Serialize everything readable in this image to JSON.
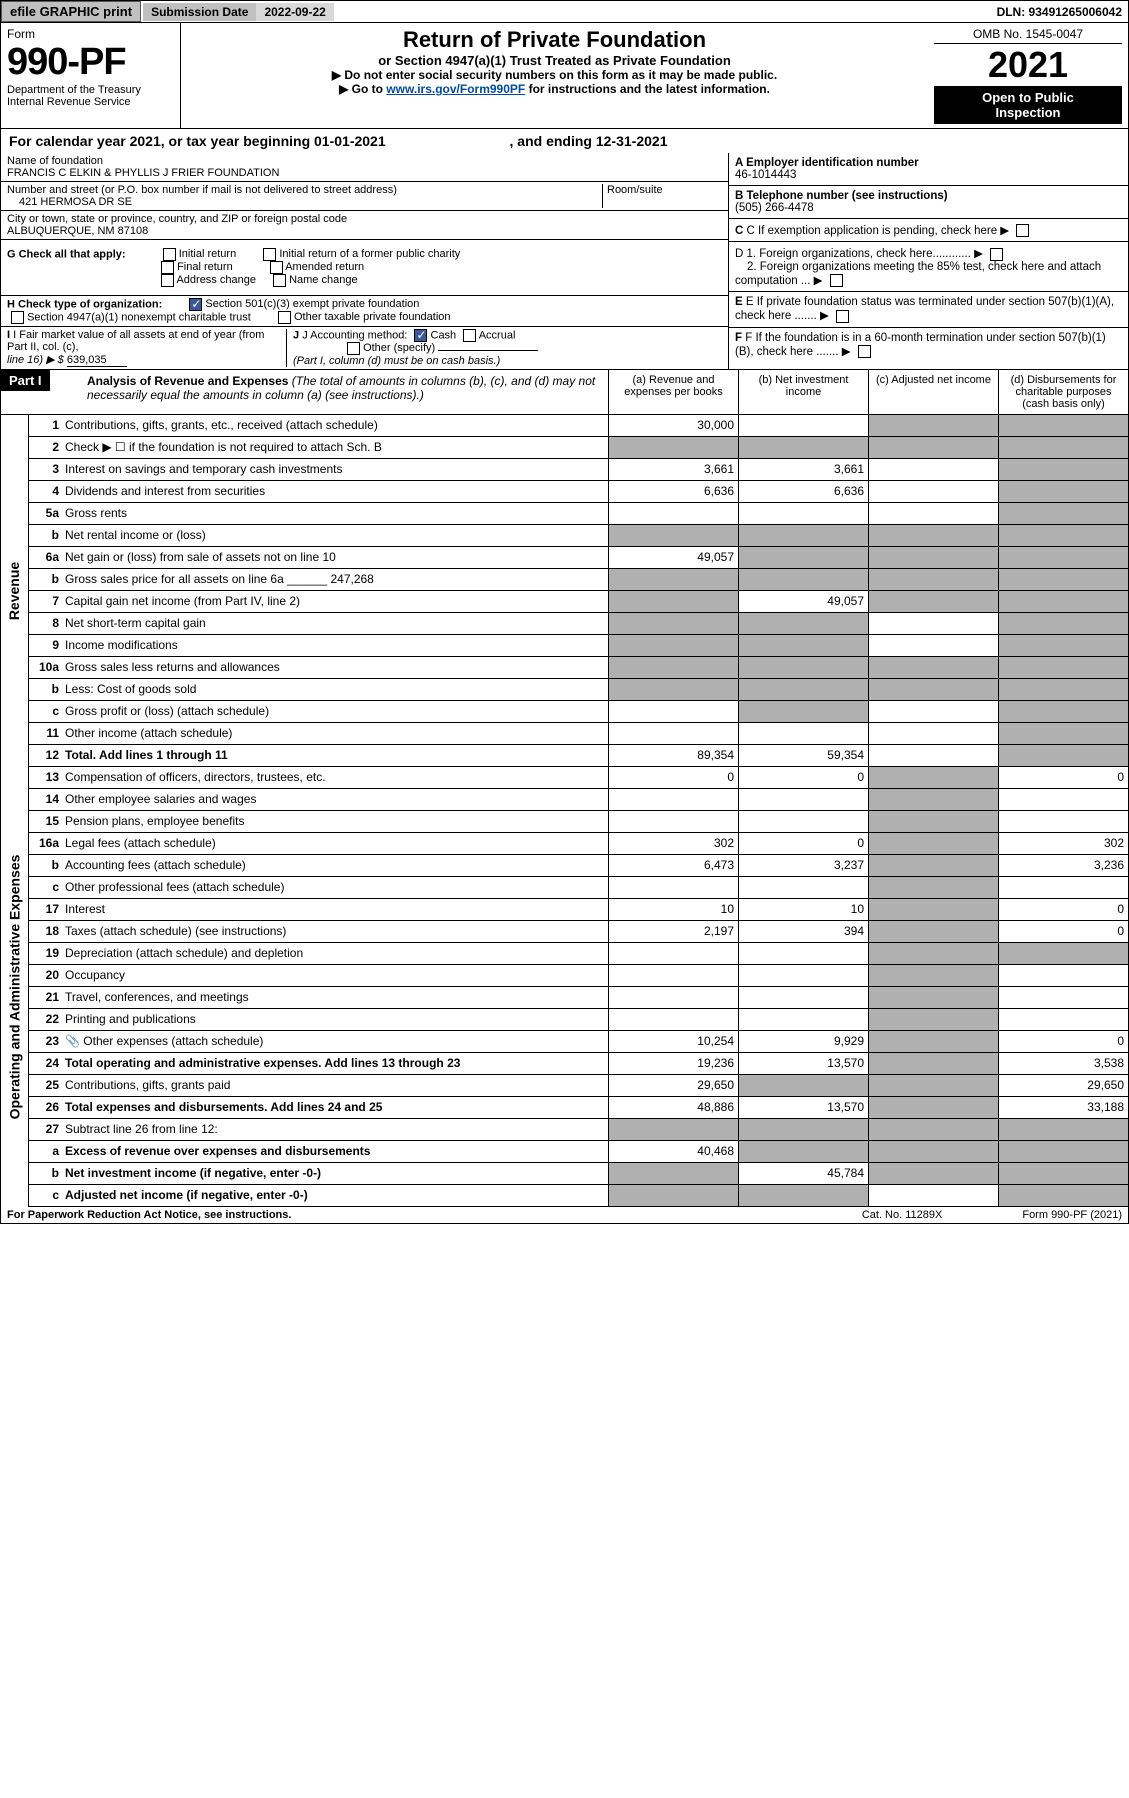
{
  "topbar": {
    "efile": "efile GRAPHIC print",
    "sub_label": "Submission Date",
    "sub_value": "2022-09-22",
    "dln": "DLN: 93491265006042"
  },
  "header": {
    "form_word": "Form",
    "form_no": "990-PF",
    "dept1": "Department of the Treasury",
    "dept2": "Internal Revenue Service",
    "title1": "Return of Private Foundation",
    "title2": "or Section 4947(a)(1) Trust Treated as Private Foundation",
    "note1": "▶ Do not enter social security numbers on this form as it may be made public.",
    "note2": "▶ Go to ",
    "link": "www.irs.gov/Form990PF",
    "note2b": " for instructions and the latest information.",
    "omb": "OMB No. 1545-0047",
    "year": "2021",
    "open1": "Open to Public",
    "open2": "Inspection"
  },
  "cal": {
    "text_a": "For calendar year 2021, or tax year beginning 01-01-2021",
    "text_b": ", and ending 12-31-2021"
  },
  "entity": {
    "name_label": "Name of foundation",
    "name": "FRANCIS C ELKIN & PHYLLIS J FRIER FOUNDATION",
    "addr_label": "Number and street (or P.O. box number if mail is not delivered to street address)",
    "addr": "421 HERMOSA DR SE",
    "room_label": "Room/suite",
    "city_label": "City or town, state or province, country, and ZIP or foreign postal code",
    "city": "ALBUQUERQUE, NM  87108"
  },
  "right": {
    "a_label": "A  Employer identification number",
    "a_val": "46-1014443",
    "b_label": "B  Telephone number (see instructions)",
    "b_val": "(505) 266-4478",
    "c_label": "C  If exemption application is pending, check here",
    "d1": "D 1. Foreign organizations, check here............",
    "d2": "2. Foreign organizations meeting the 85% test, check here and attach computation ...",
    "e_label": "E  If private foundation status was terminated under section 507(b)(1)(A), check here .......",
    "f_label": "F  If the foundation is in a 60-month termination under section 507(b)(1)(B), check here .......",
    "g_label": "G Check all that apply:",
    "g_opts": [
      "Initial return",
      "Initial return of a former public charity",
      "Final return",
      "Amended return",
      "Address change",
      "Name change"
    ],
    "h_label": "H Check type of organization:",
    "h1": "Section 501(c)(3) exempt private foundation",
    "h2": "Section 4947(a)(1) nonexempt charitable trust",
    "h3": "Other taxable private foundation",
    "i_label": "I Fair market value of all assets at end of year (from Part II, col. (c),",
    "i_line": "line 16) ▶ $",
    "i_val": "639,035",
    "j_label": "J Accounting method:",
    "j_cash": "Cash",
    "j_acc": "Accrual",
    "j_other": "Other (specify)",
    "j_note": "(Part I, column (d) must be on cash basis.)"
  },
  "part1": {
    "label": "Part I",
    "title": "Analysis of Revenue and Expenses",
    "title_note": "(The total of amounts in columns (b), (c), and (d) may not necessarily equal the amounts in column (a) (see instructions).)",
    "col_a": "(a) Revenue and expenses per books",
    "col_b": "(b) Net investment income",
    "col_c": "(c) Adjusted net income",
    "col_d": "(d) Disbursements for charitable purposes (cash basis only)"
  },
  "sections": {
    "rev": "Revenue",
    "exp": "Operating and Administrative Expenses"
  },
  "rows": [
    {
      "n": "1",
      "d": "Contributions, gifts, grants, etc., received (attach schedule)",
      "a": "30,000",
      "b": "",
      "c": "shade",
      "dd": "shade"
    },
    {
      "n": "2",
      "d": "Check ▶ ☐ if the foundation is not required to attach Sch. B",
      "a": "shade",
      "b": "shade",
      "c": "shade",
      "dd": "shade"
    },
    {
      "n": "3",
      "d": "Interest on savings and temporary cash investments",
      "a": "3,661",
      "b": "3,661",
      "c": "",
      "dd": "shade"
    },
    {
      "n": "4",
      "d": "Dividends and interest from securities",
      "a": "6,636",
      "b": "6,636",
      "c": "",
      "dd": "shade"
    },
    {
      "n": "5a",
      "d": "Gross rents",
      "a": "",
      "b": "",
      "c": "",
      "dd": "shade"
    },
    {
      "n": "b",
      "d": "Net rental income or (loss)",
      "a": "shade",
      "b": "shade",
      "c": "shade",
      "dd": "shade"
    },
    {
      "n": "6a",
      "d": "Net gain or (loss) from sale of assets not on line 10",
      "a": "49,057",
      "b": "shade",
      "c": "shade",
      "dd": "shade"
    },
    {
      "n": "b",
      "d": "Gross sales price for all assets on line 6a ______ 247,268",
      "a": "shade",
      "b": "shade",
      "c": "shade",
      "dd": "shade"
    },
    {
      "n": "7",
      "d": "Capital gain net income (from Part IV, line 2)",
      "a": "shade",
      "b": "49,057",
      "c": "shade",
      "dd": "shade"
    },
    {
      "n": "8",
      "d": "Net short-term capital gain",
      "a": "shade",
      "b": "shade",
      "c": "",
      "dd": "shade"
    },
    {
      "n": "9",
      "d": "Income modifications",
      "a": "shade",
      "b": "shade",
      "c": "",
      "dd": "shade"
    },
    {
      "n": "10a",
      "d": "Gross sales less returns and allowances",
      "a": "shade",
      "b": "shade",
      "c": "shade",
      "dd": "shade"
    },
    {
      "n": "b",
      "d": "Less: Cost of goods sold",
      "a": "shade",
      "b": "shade",
      "c": "shade",
      "dd": "shade"
    },
    {
      "n": "c",
      "d": "Gross profit or (loss) (attach schedule)",
      "a": "",
      "b": "shade",
      "c": "",
      "dd": "shade"
    },
    {
      "n": "11",
      "d": "Other income (attach schedule)",
      "a": "",
      "b": "",
      "c": "",
      "dd": "shade"
    },
    {
      "n": "12",
      "d": "Total. Add lines 1 through 11",
      "a": "89,354",
      "b": "59,354",
      "c": "",
      "dd": "shade",
      "bold": true
    },
    {
      "n": "13",
      "d": "Compensation of officers, directors, trustees, etc.",
      "a": "0",
      "b": "0",
      "c": "shade",
      "dd": "0"
    },
    {
      "n": "14",
      "d": "Other employee salaries and wages",
      "a": "",
      "b": "",
      "c": "shade",
      "dd": ""
    },
    {
      "n": "15",
      "d": "Pension plans, employee benefits",
      "a": "",
      "b": "",
      "c": "shade",
      "dd": ""
    },
    {
      "n": "16a",
      "d": "Legal fees (attach schedule)",
      "a": "302",
      "b": "0",
      "c": "shade",
      "dd": "302"
    },
    {
      "n": "b",
      "d": "Accounting fees (attach schedule)",
      "a": "6,473",
      "b": "3,237",
      "c": "shade",
      "dd": "3,236"
    },
    {
      "n": "c",
      "d": "Other professional fees (attach schedule)",
      "a": "",
      "b": "",
      "c": "shade",
      "dd": ""
    },
    {
      "n": "17",
      "d": "Interest",
      "a": "10",
      "b": "10",
      "c": "shade",
      "dd": "0"
    },
    {
      "n": "18",
      "d": "Taxes (attach schedule) (see instructions)",
      "a": "2,197",
      "b": "394",
      "c": "shade",
      "dd": "0"
    },
    {
      "n": "19",
      "d": "Depreciation (attach schedule) and depletion",
      "a": "",
      "b": "",
      "c": "shade",
      "dd": "shade"
    },
    {
      "n": "20",
      "d": "Occupancy",
      "a": "",
      "b": "",
      "c": "shade",
      "dd": ""
    },
    {
      "n": "21",
      "d": "Travel, conferences, and meetings",
      "a": "",
      "b": "",
      "c": "shade",
      "dd": ""
    },
    {
      "n": "22",
      "d": "Printing and publications",
      "a": "",
      "b": "",
      "c": "shade",
      "dd": ""
    },
    {
      "n": "23",
      "d": "Other expenses (attach schedule)",
      "a": "10,254",
      "b": "9,929",
      "c": "shade",
      "dd": "0",
      "icon": true
    },
    {
      "n": "24",
      "d": "Total operating and administrative expenses. Add lines 13 through 23",
      "a": "19,236",
      "b": "13,570",
      "c": "shade",
      "dd": "3,538",
      "bold": true
    },
    {
      "n": "25",
      "d": "Contributions, gifts, grants paid",
      "a": "29,650",
      "b": "shade",
      "c": "shade",
      "dd": "29,650"
    },
    {
      "n": "26",
      "d": "Total expenses and disbursements. Add lines 24 and 25",
      "a": "48,886",
      "b": "13,570",
      "c": "shade",
      "dd": "33,188",
      "bold": true
    },
    {
      "n": "27",
      "d": "Subtract line 26 from line 12:",
      "a": "shade",
      "b": "shade",
      "c": "shade",
      "dd": "shade"
    },
    {
      "n": "a",
      "d": "Excess of revenue over expenses and disbursements",
      "a": "40,468",
      "b": "shade",
      "c": "shade",
      "dd": "shade",
      "bold": true
    },
    {
      "n": "b",
      "d": "Net investment income (if negative, enter -0-)",
      "a": "shade",
      "b": "45,784",
      "c": "shade",
      "dd": "shade",
      "bold": true
    },
    {
      "n": "c",
      "d": "Adjusted net income (if negative, enter -0-)",
      "a": "shade",
      "b": "shade",
      "c": "",
      "dd": "shade",
      "bold": true
    }
  ],
  "footer": {
    "l": "For Paperwork Reduction Act Notice, see instructions.",
    "m": "Cat. No. 11289X",
    "r": "Form 990-PF (2021)"
  }
}
